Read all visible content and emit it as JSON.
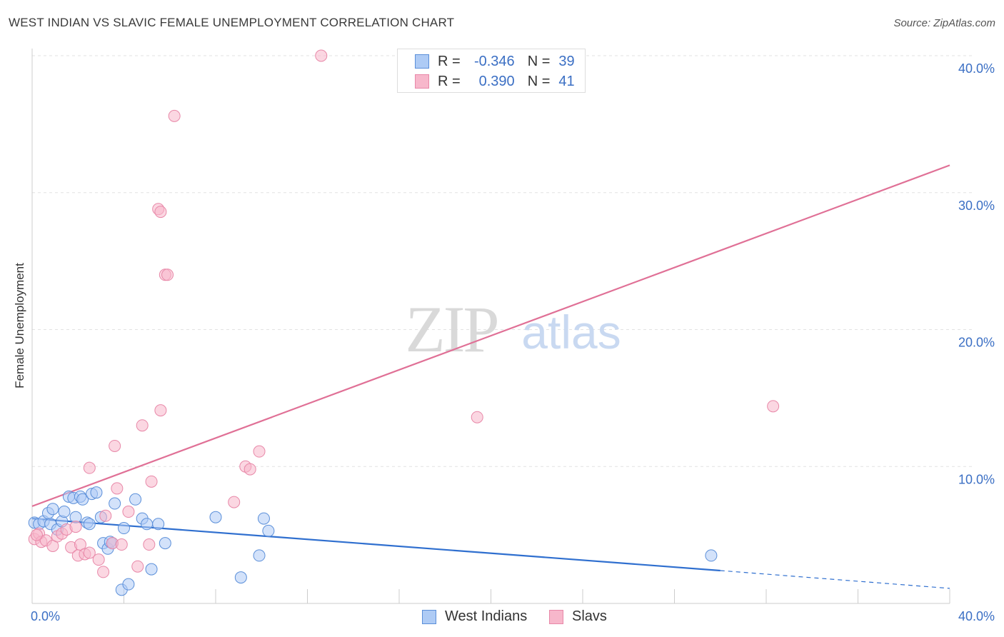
{
  "title": "WEST INDIAN VS SLAVIC FEMALE UNEMPLOYMENT CORRELATION CHART",
  "source": "Source: ZipAtlas.com",
  "watermark": {
    "zip": "ZIP",
    "atlas": "atlas"
  },
  "legend": {
    "r_label": "R =",
    "n_label": "N =",
    "series": [
      {
        "name": "West Indians",
        "r": "-0.346",
        "n": "39"
      },
      {
        "name": "Slavs",
        "r": "0.390",
        "n": "41"
      }
    ]
  },
  "colors": {
    "west_indians_fill": "#aecbf5",
    "west_indians_stroke": "#5b8fd9",
    "west_indians_line": "#2f6fcf",
    "slavs_fill": "#f7b7cb",
    "slavs_stroke": "#e888a8",
    "slavs_line": "#e07096",
    "axis_text": "#3b6fc4",
    "grid": "#e2e2e2"
  },
  "chart_data": {
    "type": "scatter",
    "title": "WEST INDIAN VS SLAVIC FEMALE UNEMPLOYMENT CORRELATION CHART",
    "xlabel": "",
    "ylabel": "Female Unemployment",
    "xlim": [
      0,
      40
    ],
    "ylim": [
      0,
      40
    ],
    "x_tick_labels": [
      "0.0%",
      "40.0%"
    ],
    "y_tick_labels": [
      "10.0%",
      "20.0%",
      "30.0%",
      "40.0%"
    ],
    "y_ticks": [
      10,
      20,
      30,
      40
    ],
    "x_minor_ticks": [
      4,
      8,
      12,
      16,
      20,
      24,
      28,
      32,
      36,
      40
    ],
    "series": [
      {
        "name": "West Indians",
        "points": [
          [
            0.1,
            5.9
          ],
          [
            0.3,
            5.8
          ],
          [
            0.5,
            6.0
          ],
          [
            0.7,
            6.6
          ],
          [
            0.8,
            5.8
          ],
          [
            0.9,
            6.9
          ],
          [
            1.1,
            5.4
          ],
          [
            1.3,
            6.0
          ],
          [
            1.4,
            6.7
          ],
          [
            1.6,
            7.8
          ],
          [
            1.8,
            7.7
          ],
          [
            1.9,
            6.3
          ],
          [
            2.1,
            7.8
          ],
          [
            2.2,
            7.6
          ],
          [
            2.4,
            5.9
          ],
          [
            2.5,
            5.8
          ],
          [
            2.6,
            8.0
          ],
          [
            2.8,
            8.1
          ],
          [
            3.0,
            6.3
          ],
          [
            3.1,
            4.4
          ],
          [
            3.3,
            4.0
          ],
          [
            3.4,
            4.5
          ],
          [
            3.6,
            7.3
          ],
          [
            3.9,
            1.0
          ],
          [
            4.0,
            5.5
          ],
          [
            4.2,
            1.4
          ],
          [
            4.5,
            7.6
          ],
          [
            4.8,
            6.2
          ],
          [
            5.0,
            5.8
          ],
          [
            5.2,
            2.5
          ],
          [
            5.5,
            5.8
          ],
          [
            5.8,
            4.4
          ],
          [
            8.0,
            6.3
          ],
          [
            9.1,
            1.9
          ],
          [
            9.9,
            3.5
          ],
          [
            10.1,
            6.2
          ],
          [
            10.3,
            5.3
          ],
          [
            29.6,
            3.5
          ],
          [
            3.5,
            4.4
          ]
        ],
        "trend": {
          "x": [
            0,
            30
          ],
          "y": [
            6.2,
            2.4
          ],
          "dashed_extension": {
            "x": [
              30,
              40
            ],
            "y": [
              2.4,
              1.1
            ]
          }
        }
      },
      {
        "name": "Slavs",
        "points": [
          [
            0.1,
            4.7
          ],
          [
            0.3,
            5.1
          ],
          [
            0.4,
            4.5
          ],
          [
            0.6,
            4.6
          ],
          [
            0.9,
            4.2
          ],
          [
            1.1,
            4.9
          ],
          [
            1.3,
            5.1
          ],
          [
            1.5,
            5.4
          ],
          [
            1.7,
            4.1
          ],
          [
            1.9,
            5.6
          ],
          [
            2.0,
            3.5
          ],
          [
            2.1,
            4.3
          ],
          [
            2.3,
            3.6
          ],
          [
            2.5,
            3.7
          ],
          [
            2.5,
            9.9
          ],
          [
            2.9,
            3.2
          ],
          [
            3.1,
            2.3
          ],
          [
            3.2,
            6.4
          ],
          [
            3.5,
            4.4
          ],
          [
            3.6,
            11.5
          ],
          [
            3.7,
            8.4
          ],
          [
            3.9,
            4.3
          ],
          [
            4.2,
            6.7
          ],
          [
            4.6,
            2.7
          ],
          [
            4.8,
            13.0
          ],
          [
            5.1,
            4.3
          ],
          [
            5.2,
            8.9
          ],
          [
            5.6,
            14.1
          ],
          [
            5.5,
            28.8
          ],
          [
            5.6,
            28.6
          ],
          [
            5.8,
            24.0
          ],
          [
            5.9,
            24.0
          ],
          [
            6.2,
            35.6
          ],
          [
            8.8,
            7.4
          ],
          [
            9.3,
            10.0
          ],
          [
            9.5,
            9.8
          ],
          [
            9.9,
            11.1
          ],
          [
            12.6,
            40.0
          ],
          [
            19.4,
            13.6
          ],
          [
            32.3,
            14.4
          ],
          [
            0.2,
            5.0
          ]
        ],
        "trend": {
          "x": [
            0,
            40
          ],
          "y": [
            7.1,
            32.0
          ]
        }
      }
    ]
  }
}
